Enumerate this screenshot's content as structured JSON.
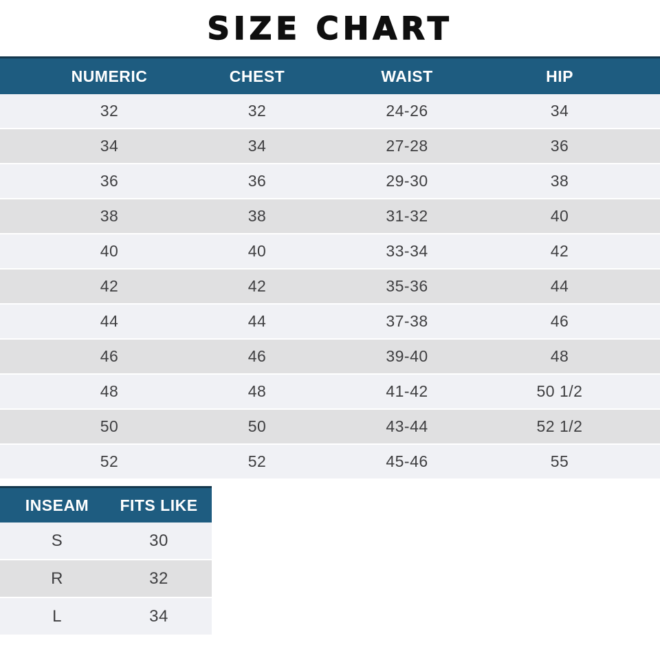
{
  "title": "SIZE CHART",
  "chart_data": [
    {
      "type": "table",
      "title": "SIZE CHART",
      "columns": [
        "NUMERIC",
        "CHEST",
        "WAIST",
        "HIP"
      ],
      "rows": [
        [
          "32",
          "32",
          "24-26",
          "34"
        ],
        [
          "34",
          "34",
          "27-28",
          "36"
        ],
        [
          "36",
          "36",
          "29-30",
          "38"
        ],
        [
          "38",
          "38",
          "31-32",
          "40"
        ],
        [
          "40",
          "40",
          "33-34",
          "42"
        ],
        [
          "42",
          "42",
          "35-36",
          "44"
        ],
        [
          "44",
          "44",
          "37-38",
          "46"
        ],
        [
          "46",
          "46",
          "39-40",
          "48"
        ],
        [
          "48",
          "48",
          "41-42",
          "50 1/2"
        ],
        [
          "50",
          "50",
          "43-44",
          "52 1/2"
        ],
        [
          "52",
          "52",
          "45-46",
          "55"
        ]
      ]
    },
    {
      "type": "table",
      "columns": [
        "INSEAM",
        "FITS LIKE"
      ],
      "rows": [
        [
          "S",
          "30"
        ],
        [
          "R",
          "32"
        ],
        [
          "L",
          "34"
        ]
      ]
    }
  ],
  "colors": {
    "header_bg": "#1e5c80",
    "header_top_border": "#14384e",
    "header_text": "#ffffff",
    "row_light": "#f0f1f5",
    "row_alt": "#e0e0e1",
    "cell_text": "#3e3e40",
    "title_text": "#0f0f0f"
  }
}
